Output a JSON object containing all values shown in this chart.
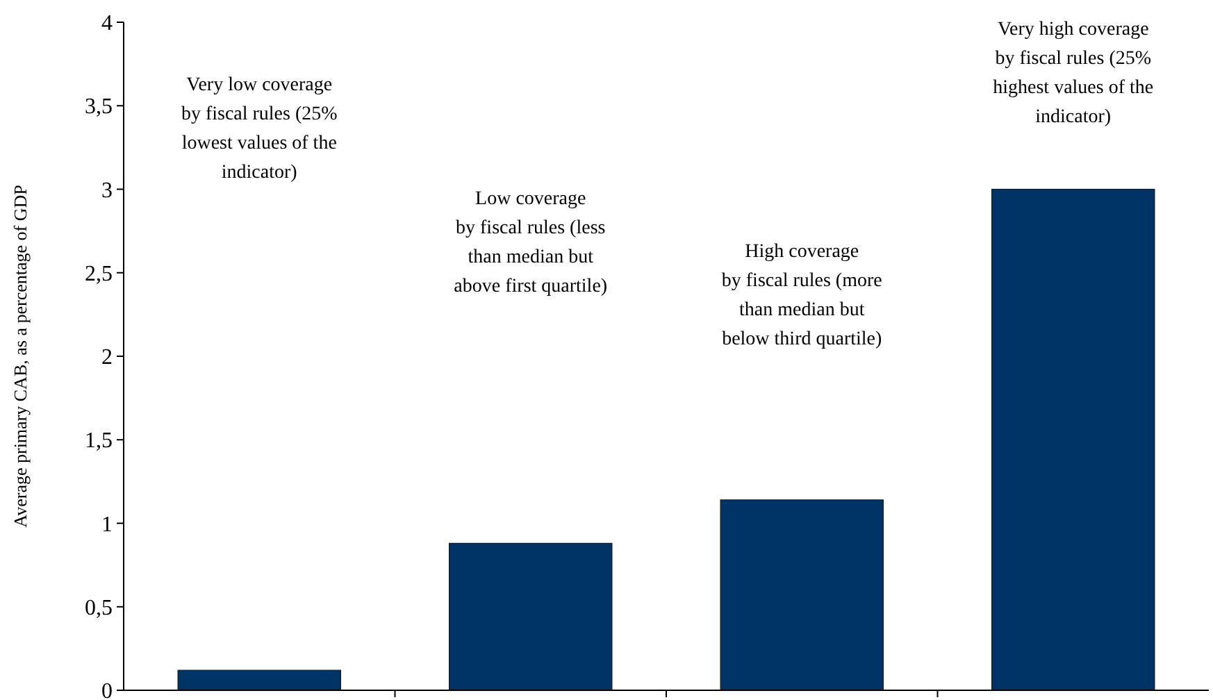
{
  "chart_data": {
    "type": "bar",
    "ylabel": "Average primary CAB, as a percentage of GDP",
    "categories": [
      null,
      null,
      null,
      null
    ],
    "values": [
      0.12,
      0.88,
      1.14,
      3.0
    ],
    "color": "#003366",
    "ylim": [
      0,
      4
    ],
    "yticks": [
      0,
      {
        "value": 0.5,
        "label": "0,5"
      },
      1,
      {
        "value": 1.5,
        "label": "1,5"
      },
      2,
      {
        "value": 2.5,
        "label": "2,5"
      },
      3,
      {
        "value": 3.5,
        "label": "3,5"
      },
      4
    ],
    "annotations": [
      "Very low coverage\nby fiscal rules (25%\nlowest values of the\nindicator)",
      "Low coverage\nby fiscal rules (less\nthan median but\nabove first quartile)",
      "High coverage\nby fiscal rules (more\nthan median but\nbelow third quartile)",
      "Very high coverage\nby fiscal rules (25%\nhighest values of the\nindicator)"
    ],
    "grid": false
  }
}
